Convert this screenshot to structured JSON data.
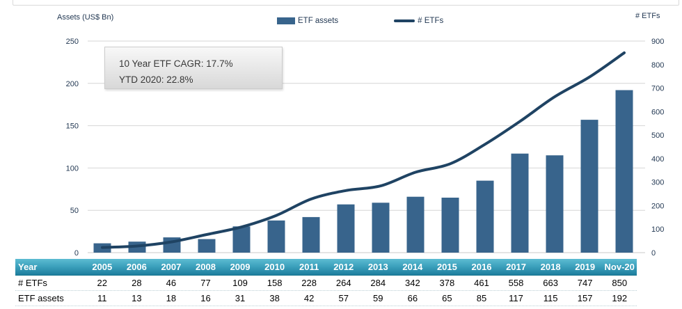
{
  "chart": {
    "left_axis_title": "Assets (US$ Bn)",
    "right_axis_title": "# ETFs",
    "legend": [
      {
        "label": "ETF assets",
        "type": "bar",
        "color": "#38648c"
      },
      {
        "label": "# ETFs",
        "type": "line",
        "color": "#1f4363"
      }
    ],
    "annotation": {
      "line1": "10 Year ETF CAGR: 17.7%",
      "line2": "YTD 2020: 22.8%"
    }
  },
  "chart_data": {
    "type": "bar",
    "title": "",
    "categories": [
      "2005",
      "2006",
      "2007",
      "2008",
      "2009",
      "2010",
      "2011",
      "2012",
      "2013",
      "2014",
      "2015",
      "2016",
      "2017",
      "2018",
      "2019",
      "Nov-20"
    ],
    "series": [
      {
        "name": "ETF assets",
        "type": "bar",
        "axis": "left",
        "color": "#38648c",
        "values": [
          11,
          13,
          18,
          16,
          31,
          38,
          42,
          57,
          59,
          66,
          65,
          85,
          117,
          115,
          157,
          192
        ]
      },
      {
        "name": "# ETFs",
        "type": "line",
        "axis": "right",
        "color": "#1f4363",
        "values": [
          22,
          28,
          46,
          77,
          109,
          158,
          228,
          264,
          284,
          342,
          378,
          461,
          558,
          663,
          747,
          850
        ]
      }
    ],
    "left_axis": {
      "title": "Assets (US$ Bn)",
      "min": 0,
      "max": 250,
      "step": 50
    },
    "right_axis": {
      "title": "# ETFs",
      "min": 0,
      "max": 900,
      "step": 100
    },
    "grid": true,
    "legend_position": "top-center",
    "annotations": [
      "10 Year ETF CAGR: 17.7%",
      "YTD 2020: 22.8%"
    ]
  },
  "table": {
    "header_label": "Year",
    "columns": [
      "2005",
      "2006",
      "2007",
      "2008",
      "2009",
      "2010",
      "2011",
      "2012",
      "2013",
      "2014",
      "2015",
      "2016",
      "2017",
      "2018",
      "2019",
      "Nov-20"
    ],
    "rows": [
      {
        "label": "# ETFs",
        "values": [
          "22",
          "28",
          "46",
          "77",
          "109",
          "158",
          "228",
          "264",
          "284",
          "342",
          "378",
          "461",
          "558",
          "663",
          "747",
          "850"
        ]
      },
      {
        "label": "ETF assets",
        "values": [
          "11",
          "13",
          "18",
          "16",
          "31",
          "38",
          "42",
          "57",
          "59",
          "66",
          "65",
          "85",
          "117",
          "115",
          "157",
          "192"
        ]
      }
    ]
  },
  "colors": {
    "grid": "#d6d6d6",
    "axis_text": "#1f3550",
    "table_header_top": "#5cbcd2",
    "table_header_bottom": "#1e7e9e"
  }
}
